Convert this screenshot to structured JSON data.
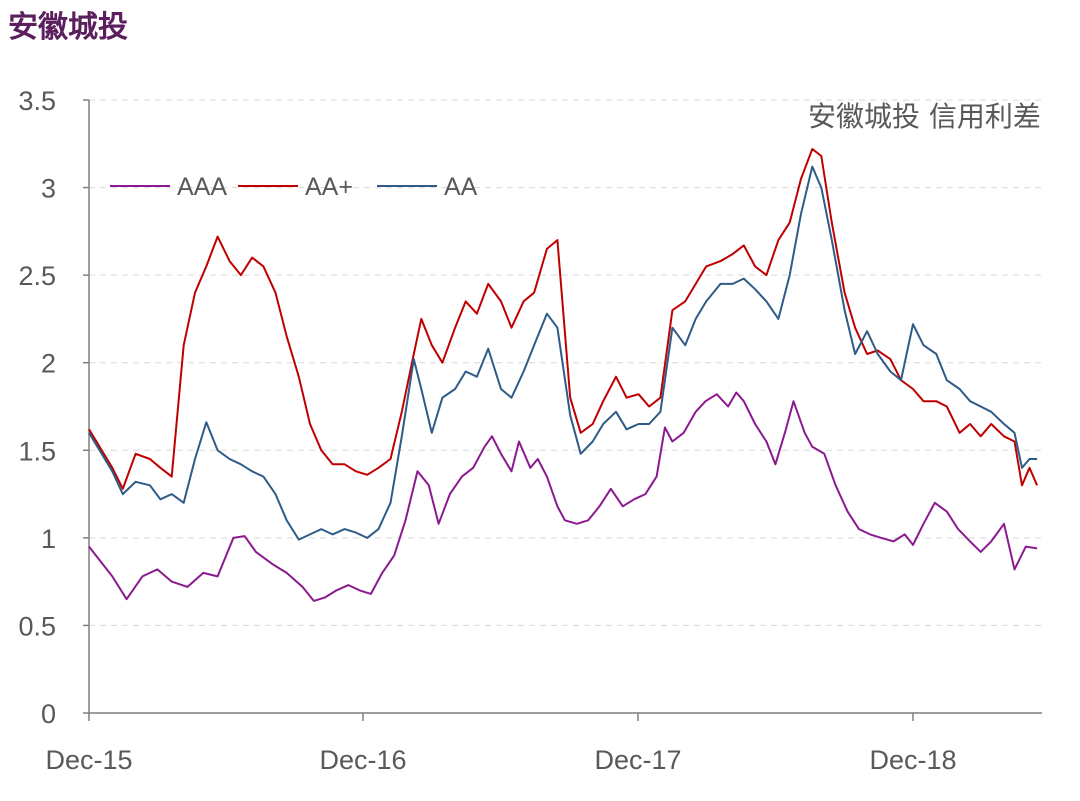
{
  "header": {
    "title": "安徽城投"
  },
  "chart_data": {
    "type": "line",
    "title": "安徽城投 信用利差",
    "xlabel": "",
    "ylabel": "",
    "x_ticks": [
      "Dec-15",
      "Dec-16",
      "Dec-17",
      "Dec-18"
    ],
    "y_ticks": [
      "0",
      "0.5",
      "1",
      "1.5",
      "2",
      "2.5",
      "3",
      "3.5"
    ],
    "ylim": [
      0,
      3.5
    ],
    "x_range": [
      "2015-12",
      "2019-05"
    ],
    "grid": "horizontal dashed",
    "legend_position": "top-left",
    "series": [
      {
        "name": "AAA",
        "color": "#8b1a8f",
        "points": [
          [
            "2015-12-01",
            0.95
          ],
          [
            "2016-01-01",
            0.78
          ],
          [
            "2016-01-20",
            0.65
          ],
          [
            "2016-02-10",
            0.78
          ],
          [
            "2016-03-01",
            0.82
          ],
          [
            "2016-03-20",
            0.75
          ],
          [
            "2016-04-10",
            0.72
          ],
          [
            "2016-05-01",
            0.8
          ],
          [
            "2016-05-20",
            0.78
          ],
          [
            "2016-06-10",
            1.0
          ],
          [
            "2016-06-25",
            1.01
          ],
          [
            "2016-07-10",
            0.92
          ],
          [
            "2016-08-01",
            0.85
          ],
          [
            "2016-08-20",
            0.8
          ],
          [
            "2016-09-10",
            0.72
          ],
          [
            "2016-09-25",
            0.64
          ],
          [
            "2016-10-10",
            0.66
          ],
          [
            "2016-10-25",
            0.7
          ],
          [
            "2016-11-10",
            0.73
          ],
          [
            "2016-11-25",
            0.7
          ],
          [
            "2016-12-10",
            0.68
          ],
          [
            "2016-12-25",
            0.8
          ],
          [
            "2017-01-10",
            0.9
          ],
          [
            "2017-01-25",
            1.1
          ],
          [
            "2017-02-10",
            1.38
          ],
          [
            "2017-02-25",
            1.3
          ],
          [
            "2017-03-10",
            1.08
          ],
          [
            "2017-03-25",
            1.25
          ],
          [
            "2017-04-10",
            1.35
          ],
          [
            "2017-04-25",
            1.4
          ],
          [
            "2017-05-10",
            1.52
          ],
          [
            "2017-05-20",
            1.58
          ],
          [
            "2017-06-01",
            1.48
          ],
          [
            "2017-06-15",
            1.38
          ],
          [
            "2017-06-25",
            1.55
          ],
          [
            "2017-07-10",
            1.4
          ],
          [
            "2017-07-20",
            1.45
          ],
          [
            "2017-08-01",
            1.35
          ],
          [
            "2017-08-15",
            1.18
          ],
          [
            "2017-08-25",
            1.1
          ],
          [
            "2017-09-10",
            1.08
          ],
          [
            "2017-09-25",
            1.1
          ],
          [
            "2017-10-10",
            1.18
          ],
          [
            "2017-10-25",
            1.28
          ],
          [
            "2017-11-10",
            1.18
          ],
          [
            "2017-11-25",
            1.22
          ],
          [
            "2017-12-10",
            1.25
          ],
          [
            "2017-12-25",
            1.35
          ],
          [
            "2018-01-05",
            1.63
          ],
          [
            "2018-01-15",
            1.55
          ],
          [
            "2018-01-30",
            1.6
          ],
          [
            "2018-02-15",
            1.72
          ],
          [
            "2018-02-28",
            1.78
          ],
          [
            "2018-03-15",
            1.82
          ],
          [
            "2018-03-30",
            1.75
          ],
          [
            "2018-04-10",
            1.83
          ],
          [
            "2018-04-20",
            1.78
          ],
          [
            "2018-05-05",
            1.65
          ],
          [
            "2018-05-20",
            1.55
          ],
          [
            "2018-06-01",
            1.42
          ],
          [
            "2018-06-15",
            1.62
          ],
          [
            "2018-06-25",
            1.78
          ],
          [
            "2018-07-10",
            1.6
          ],
          [
            "2018-07-20",
            1.52
          ],
          [
            "2018-08-05",
            1.48
          ],
          [
            "2018-08-20",
            1.3
          ],
          [
            "2018-09-05",
            1.15
          ],
          [
            "2018-09-20",
            1.05
          ],
          [
            "2018-10-05",
            1.02
          ],
          [
            "2018-10-20",
            1.0
          ],
          [
            "2018-11-05",
            0.98
          ],
          [
            "2018-11-20",
            1.02
          ],
          [
            "2018-12-01",
            0.96
          ],
          [
            "2018-12-15",
            1.08
          ],
          [
            "2018-12-30",
            1.2
          ],
          [
            "2019-01-15",
            1.15
          ],
          [
            "2019-01-30",
            1.05
          ],
          [
            "2019-02-15",
            0.98
          ],
          [
            "2019-03-01",
            0.92
          ],
          [
            "2019-03-15",
            0.98
          ],
          [
            "2019-04-01",
            1.08
          ],
          [
            "2019-04-15",
            0.82
          ],
          [
            "2019-04-30",
            0.95
          ],
          [
            "2019-05-15",
            0.94
          ]
        ]
      },
      {
        "name": "AA+",
        "color": "#c00000",
        "points": [
          [
            "2015-12-01",
            1.62
          ],
          [
            "2016-01-01",
            1.4
          ],
          [
            "2016-01-15",
            1.28
          ],
          [
            "2016-02-01",
            1.48
          ],
          [
            "2016-02-20",
            1.45
          ],
          [
            "2016-03-05",
            1.4
          ],
          [
            "2016-03-20",
            1.35
          ],
          [
            "2016-04-05",
            2.1
          ],
          [
            "2016-04-20",
            2.4
          ],
          [
            "2016-05-05",
            2.55
          ],
          [
            "2016-05-20",
            2.72
          ],
          [
            "2016-06-05",
            2.58
          ],
          [
            "2016-06-20",
            2.5
          ],
          [
            "2016-07-05",
            2.6
          ],
          [
            "2016-07-20",
            2.55
          ],
          [
            "2016-08-05",
            2.4
          ],
          [
            "2016-08-20",
            2.15
          ],
          [
            "2016-09-05",
            1.92
          ],
          [
            "2016-09-20",
            1.65
          ],
          [
            "2016-10-05",
            1.5
          ],
          [
            "2016-10-20",
            1.42
          ],
          [
            "2016-11-05",
            1.42
          ],
          [
            "2016-11-20",
            1.38
          ],
          [
            "2016-12-05",
            1.36
          ],
          [
            "2016-12-20",
            1.4
          ],
          [
            "2017-01-05",
            1.45
          ],
          [
            "2017-01-20",
            1.72
          ],
          [
            "2017-02-05",
            2.05
          ],
          [
            "2017-02-15",
            2.25
          ],
          [
            "2017-03-01",
            2.1
          ],
          [
            "2017-03-15",
            2.0
          ],
          [
            "2017-04-01",
            2.2
          ],
          [
            "2017-04-15",
            2.35
          ],
          [
            "2017-04-30",
            2.28
          ],
          [
            "2017-05-15",
            2.45
          ],
          [
            "2017-06-01",
            2.35
          ],
          [
            "2017-06-15",
            2.2
          ],
          [
            "2017-07-01",
            2.35
          ],
          [
            "2017-07-15",
            2.4
          ],
          [
            "2017-08-01",
            2.65
          ],
          [
            "2017-08-15",
            2.7
          ],
          [
            "2017-09-01",
            1.8
          ],
          [
            "2017-09-15",
            1.6
          ],
          [
            "2017-10-01",
            1.65
          ],
          [
            "2017-10-15",
            1.78
          ],
          [
            "2017-11-01",
            1.92
          ],
          [
            "2017-11-15",
            1.8
          ],
          [
            "2017-12-01",
            1.82
          ],
          [
            "2017-12-15",
            1.75
          ],
          [
            "2017-12-30",
            1.8
          ],
          [
            "2018-01-15",
            2.3
          ],
          [
            "2018-02-01",
            2.35
          ],
          [
            "2018-02-15",
            2.45
          ],
          [
            "2018-03-01",
            2.55
          ],
          [
            "2018-03-20",
            2.58
          ],
          [
            "2018-04-05",
            2.62
          ],
          [
            "2018-04-20",
            2.67
          ],
          [
            "2018-05-05",
            2.55
          ],
          [
            "2018-05-20",
            2.5
          ],
          [
            "2018-06-05",
            2.7
          ],
          [
            "2018-06-20",
            2.8
          ],
          [
            "2018-07-05",
            3.05
          ],
          [
            "2018-07-20",
            3.22
          ],
          [
            "2018-08-01",
            3.18
          ],
          [
            "2018-08-15",
            2.8
          ],
          [
            "2018-09-01",
            2.4
          ],
          [
            "2018-09-15",
            2.2
          ],
          [
            "2018-10-01",
            2.05
          ],
          [
            "2018-10-15",
            2.07
          ],
          [
            "2018-11-01",
            2.02
          ],
          [
            "2018-11-15",
            1.9
          ],
          [
            "2018-12-01",
            1.85
          ],
          [
            "2018-12-15",
            1.78
          ],
          [
            "2019-01-01",
            1.78
          ],
          [
            "2019-01-15",
            1.75
          ],
          [
            "2019-02-01",
            1.6
          ],
          [
            "2019-02-15",
            1.65
          ],
          [
            "2019-03-01",
            1.58
          ],
          [
            "2019-03-15",
            1.65
          ],
          [
            "2019-04-01",
            1.58
          ],
          [
            "2019-04-15",
            1.55
          ],
          [
            "2019-04-25",
            1.3
          ],
          [
            "2019-05-05",
            1.4
          ],
          [
            "2019-05-15",
            1.3
          ]
        ]
      },
      {
        "name": "AA",
        "color": "#2e5b88",
        "points": [
          [
            "2015-12-01",
            1.6
          ],
          [
            "2016-01-01",
            1.38
          ],
          [
            "2016-01-15",
            1.25
          ],
          [
            "2016-02-01",
            1.32
          ],
          [
            "2016-02-20",
            1.3
          ],
          [
            "2016-03-05",
            1.22
          ],
          [
            "2016-03-20",
            1.25
          ],
          [
            "2016-04-05",
            1.2
          ],
          [
            "2016-04-20",
            1.45
          ],
          [
            "2016-05-05",
            1.66
          ],
          [
            "2016-05-20",
            1.5
          ],
          [
            "2016-06-05",
            1.45
          ],
          [
            "2016-06-20",
            1.42
          ],
          [
            "2016-07-05",
            1.38
          ],
          [
            "2016-07-20",
            1.35
          ],
          [
            "2016-08-05",
            1.25
          ],
          [
            "2016-08-20",
            1.1
          ],
          [
            "2016-09-05",
            0.99
          ],
          [
            "2016-09-20",
            1.02
          ],
          [
            "2016-10-05",
            1.05
          ],
          [
            "2016-10-20",
            1.02
          ],
          [
            "2016-11-05",
            1.05
          ],
          [
            "2016-11-20",
            1.03
          ],
          [
            "2016-12-05",
            1.0
          ],
          [
            "2016-12-20",
            1.05
          ],
          [
            "2017-01-05",
            1.2
          ],
          [
            "2017-01-20",
            1.58
          ],
          [
            "2017-02-05",
            2.02
          ],
          [
            "2017-02-15",
            1.85
          ],
          [
            "2017-03-01",
            1.6
          ],
          [
            "2017-03-15",
            1.8
          ],
          [
            "2017-04-01",
            1.85
          ],
          [
            "2017-04-15",
            1.95
          ],
          [
            "2017-04-30",
            1.92
          ],
          [
            "2017-05-15",
            2.08
          ],
          [
            "2017-06-01",
            1.85
          ],
          [
            "2017-06-15",
            1.8
          ],
          [
            "2017-07-01",
            1.95
          ],
          [
            "2017-07-15",
            2.1
          ],
          [
            "2017-08-01",
            2.28
          ],
          [
            "2017-08-15",
            2.2
          ],
          [
            "2017-09-01",
            1.7
          ],
          [
            "2017-09-15",
            1.48
          ],
          [
            "2017-10-01",
            1.55
          ],
          [
            "2017-10-15",
            1.65
          ],
          [
            "2017-11-01",
            1.72
          ],
          [
            "2017-11-15",
            1.62
          ],
          [
            "2017-12-01",
            1.65
          ],
          [
            "2017-12-15",
            1.65
          ],
          [
            "2017-12-30",
            1.72
          ],
          [
            "2018-01-15",
            2.2
          ],
          [
            "2018-02-01",
            2.1
          ],
          [
            "2018-02-15",
            2.25
          ],
          [
            "2018-03-01",
            2.35
          ],
          [
            "2018-03-20",
            2.45
          ],
          [
            "2018-04-05",
            2.45
          ],
          [
            "2018-04-20",
            2.48
          ],
          [
            "2018-05-05",
            2.42
          ],
          [
            "2018-05-20",
            2.35
          ],
          [
            "2018-06-05",
            2.25
          ],
          [
            "2018-06-20",
            2.5
          ],
          [
            "2018-07-05",
            2.85
          ],
          [
            "2018-07-20",
            3.12
          ],
          [
            "2018-08-01",
            3.0
          ],
          [
            "2018-08-15",
            2.7
          ],
          [
            "2018-09-01",
            2.3
          ],
          [
            "2018-09-15",
            2.05
          ],
          [
            "2018-10-01",
            2.18
          ],
          [
            "2018-10-15",
            2.05
          ],
          [
            "2018-11-01",
            1.95
          ],
          [
            "2018-11-15",
            1.9
          ],
          [
            "2018-12-01",
            2.22
          ],
          [
            "2018-12-15",
            2.1
          ],
          [
            "2019-01-01",
            2.05
          ],
          [
            "2019-01-15",
            1.9
          ],
          [
            "2019-02-01",
            1.85
          ],
          [
            "2019-02-15",
            1.78
          ],
          [
            "2019-03-01",
            1.75
          ],
          [
            "2019-03-15",
            1.72
          ],
          [
            "2019-04-01",
            1.65
          ],
          [
            "2019-04-15",
            1.6
          ],
          [
            "2019-04-25",
            1.4
          ],
          [
            "2019-05-05",
            1.45
          ],
          [
            "2019-05-15",
            1.45
          ]
        ]
      }
    ]
  }
}
